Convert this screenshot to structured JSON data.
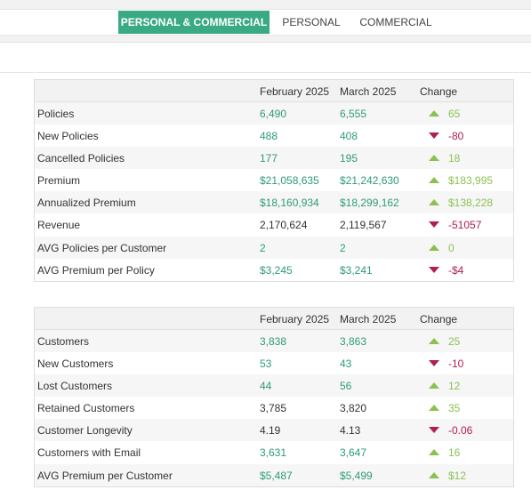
{
  "tabs": [
    "PERSONAL & COMMERCIAL",
    "PERSONAL",
    "COMMERCIAL"
  ],
  "active_tab": 0,
  "colors": {
    "accent": "#3aaa85",
    "value_teal": "#2e9a7b",
    "up": "#8cc152",
    "down": "#b0204a"
  },
  "tables": [
    {
      "headers": [
        "February 2025",
        "March 2025",
        "Change"
      ],
      "rows": [
        {
          "label": "Policies",
          "feb": "6,490",
          "mar": "6,555",
          "change": "65",
          "dir": "up",
          "teal": true
        },
        {
          "label": "New Policies",
          "feb": "488",
          "mar": "408",
          "change": "-80",
          "dir": "down",
          "teal": true
        },
        {
          "label": "Cancelled Policies",
          "feb": "177",
          "mar": "195",
          "change": "18",
          "dir": "up",
          "teal": true
        },
        {
          "label": "Premium",
          "feb": "$21,058,635",
          "mar": "$21,242,630",
          "change": "$183,995",
          "dir": "up",
          "teal": true
        },
        {
          "label": "Annualized Premium",
          "feb": "$18,160,934",
          "mar": "$18,299,162",
          "change": "$138,228",
          "dir": "up",
          "teal": true
        },
        {
          "label": "Revenue",
          "feb": "2,170,624",
          "mar": "2,119,567",
          "change": "-51057",
          "dir": "down",
          "teal": false
        },
        {
          "label": "AVG Policies per Customer",
          "feb": "2",
          "mar": "2",
          "change": "0",
          "dir": "up",
          "teal": true
        },
        {
          "label": "AVG Premium per Policy",
          "feb": "$3,245",
          "mar": "$3,241",
          "change": "-$4",
          "dir": "down",
          "teal": true
        }
      ]
    },
    {
      "headers": [
        "February 2025",
        "March 2025",
        "Change"
      ],
      "rows": [
        {
          "label": "Customers",
          "feb": "3,838",
          "mar": "3,863",
          "change": "25",
          "dir": "up",
          "teal": true
        },
        {
          "label": "New Customers",
          "feb": "53",
          "mar": "43",
          "change": "-10",
          "dir": "down",
          "teal": true
        },
        {
          "label": "Lost Customers",
          "feb": "44",
          "mar": "56",
          "change": "12",
          "dir": "up",
          "teal": true
        },
        {
          "label": "Retained Customers",
          "feb": "3,785",
          "mar": "3,820",
          "change": "35",
          "dir": "up",
          "teal": false
        },
        {
          "label": "Customer Longevity",
          "feb": "4.19",
          "mar": "4.13",
          "change": "-0.06",
          "dir": "down",
          "teal": false
        },
        {
          "label": "Customers with Email",
          "feb": "3,631",
          "mar": "3,647",
          "change": "16",
          "dir": "up",
          "teal": true
        },
        {
          "label": "AVG Premium per Customer",
          "feb": "$5,487",
          "mar": "$5,499",
          "change": "$12",
          "dir": "up",
          "teal": true
        }
      ]
    }
  ]
}
